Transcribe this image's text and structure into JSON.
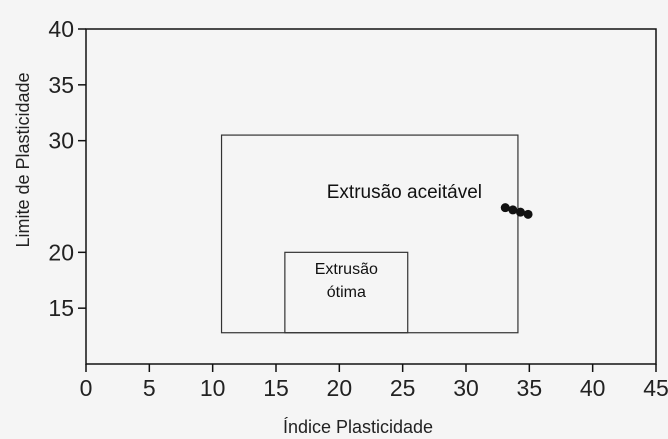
{
  "chart_data": {
    "type": "scatter",
    "xlabel": "Índice Plasticidade",
    "ylabel": "Limite de Plasticidade",
    "xlim": [
      0,
      45
    ],
    "ylim": [
      10,
      40
    ],
    "x_ticks": [
      0,
      5,
      10,
      15,
      20,
      25,
      30,
      35,
      40,
      45
    ],
    "y_ticks": [
      15,
      20,
      30,
      35,
      40
    ],
    "grid": false,
    "regions": [
      {
        "label": "Extrusão aceitável",
        "x": [
          10.7,
          34.1
        ],
        "y": [
          12.8,
          30.5
        ]
      },
      {
        "label_lines": [
          "Extrusão",
          "ótima"
        ],
        "x": [
          15.7,
          25.4
        ],
        "y": [
          12.8,
          20.0
        ]
      }
    ],
    "series": [
      {
        "points": [
          {
            "x": 33.1,
            "y": 24.0
          },
          {
            "x": 33.7,
            "y": 23.8
          },
          {
            "x": 34.3,
            "y": 23.6
          },
          {
            "x": 34.9,
            "y": 23.4
          }
        ]
      }
    ]
  }
}
